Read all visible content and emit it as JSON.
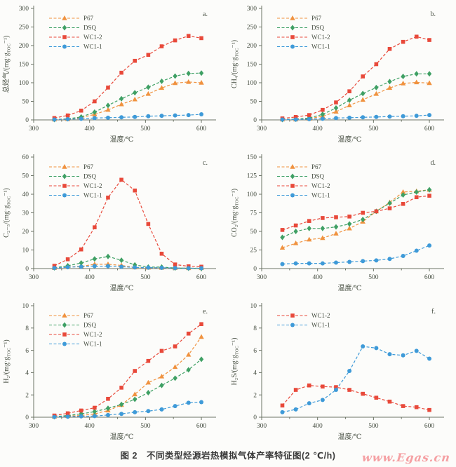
{
  "figure": {
    "caption": "图 2　不同类型烃源岩热模拟气体产率特征图(2 ℃/h)",
    "watermark": "www.Egas.cn"
  },
  "shared": {
    "xlabel": "温度/℃",
    "xlim": [
      300,
      615
    ],
    "xticks": [
      300,
      400,
      500,
      600
    ],
    "xticks_minor": [
      350,
      450,
      550
    ],
    "x_values": [
      337,
      361,
      385,
      409,
      433,
      457,
      481,
      505,
      529,
      553,
      577,
      600
    ],
    "colors": {
      "P67": "#f0923f",
      "DSQ": "#3fa064",
      "WC1-2": "#e8493a",
      "WC1-1": "#3e9ad8",
      "axis": "#6b7365",
      "text": "#474f42"
    },
    "markers": {
      "P67": "triangle",
      "DSQ": "diamond",
      "WC1-2": "square",
      "WC1-1": "circle"
    },
    "legend_position": "upper-left",
    "line_style": "dashed"
  },
  "chart_data": [
    {
      "type": "line",
      "panel": "a.",
      "ylabel": "总烃气/(mg·gTOC⁻¹)",
      "ylim": [
        0,
        300
      ],
      "yticks": [
        0,
        50,
        100,
        150,
        200,
        250,
        300
      ],
      "x": [
        337,
        361,
        385,
        409,
        433,
        457,
        481,
        505,
        529,
        553,
        577,
        600
      ],
      "series": [
        {
          "name": "P67",
          "values": [
            1,
            2,
            6,
            15,
            27,
            42,
            55,
            70,
            86,
            99,
            102,
            100
          ]
        },
        {
          "name": "DSQ",
          "values": [
            1,
            3,
            8,
            21,
            39,
            57,
            73,
            88,
            104,
            118,
            125,
            126
          ]
        },
        {
          "name": "WC1-2",
          "values": [
            5,
            12,
            25,
            50,
            87,
            127,
            159,
            175,
            198,
            214,
            226,
            220
          ]
        },
        {
          "name": "WC1-1",
          "values": [
            1,
            2,
            3,
            5,
            6,
            7,
            8,
            10,
            11,
            12,
            13,
            15
          ]
        }
      ]
    },
    {
      "type": "line",
      "panel": "b.",
      "ylabel": "CH₄/(mg·gTOC⁻¹)",
      "ylim": [
        0,
        300
      ],
      "yticks": [
        0,
        50,
        100,
        150,
        200,
        250,
        300
      ],
      "x": [
        337,
        361,
        385,
        409,
        433,
        457,
        481,
        505,
        529,
        553,
        577,
        600
      ],
      "series": [
        {
          "name": "P67",
          "values": [
            1,
            1,
            3,
            10,
            22,
            39,
            54,
            70,
            86,
            98,
            101,
            99
          ]
        },
        {
          "name": "DSQ",
          "values": [
            1,
            2,
            5,
            15,
            32,
            53,
            71,
            87,
            103,
            117,
            124,
            124
          ]
        },
        {
          "name": "WC1-2",
          "values": [
            4,
            8,
            13,
            27,
            47,
            77,
            117,
            150,
            191,
            210,
            224,
            215
          ]
        },
        {
          "name": "WC1-1",
          "values": [
            1,
            1,
            2,
            3,
            5,
            6,
            7,
            8,
            9,
            10,
            11,
            13
          ]
        }
      ]
    },
    {
      "type": "line",
      "panel": "c.",
      "ylabel": "C₂₋₅/(mg·gTOC⁻¹)",
      "ylim": [
        0,
        60
      ],
      "yticks": [
        0,
        10,
        20,
        30,
        40,
        50,
        60
      ],
      "x": [
        337,
        361,
        385,
        409,
        433,
        457,
        481,
        505,
        529,
        553,
        577,
        600
      ],
      "series": [
        {
          "name": "P67",
          "values": [
            0.3,
            0.8,
            1.2,
            2.3,
            2.3,
            1.7,
            0.6,
            0.5,
            0.4,
            0.3,
            0.2,
            0.2
          ]
        },
        {
          "name": "DSQ",
          "values": [
            0.4,
            1.5,
            3.0,
            5.2,
            6.5,
            4.5,
            2.0,
            0.8,
            0.8,
            0.3,
            0.2,
            0.1
          ]
        },
        {
          "name": "WC1-2",
          "values": [
            1.5,
            5.0,
            10.3,
            22.2,
            38.2,
            47.8,
            42.0,
            24.0,
            8.0,
            2.2,
            1.2,
            1.0
          ]
        },
        {
          "name": "WC1-1",
          "values": [
            0.3,
            0.7,
            1.0,
            1.3,
            1.3,
            1.0,
            0.6,
            0.5,
            0.4,
            0.3,
            0.2,
            0.2
          ]
        }
      ]
    },
    {
      "type": "line",
      "panel": "d.",
      "ylabel": "CO₂/(mg·gTOC⁻¹)",
      "ylim": [
        0,
        150
      ],
      "yticks": [
        0,
        25,
        50,
        75,
        100,
        125,
        150
      ],
      "x": [
        337,
        361,
        385,
        409,
        433,
        457,
        481,
        505,
        529,
        553,
        577,
        600
      ],
      "series": [
        {
          "name": "P67",
          "values": [
            28,
            34,
            39,
            41,
            47,
            54,
            63,
            77,
            89,
            103,
            104,
            106
          ]
        },
        {
          "name": "DSQ",
          "values": [
            42,
            50,
            54,
            54,
            56,
            60,
            66,
            77,
            88,
            99,
            103,
            106
          ]
        },
        {
          "name": "WC1-2",
          "values": [
            52,
            58,
            64,
            68,
            69,
            70,
            75,
            77,
            81,
            87,
            96,
            98
          ]
        },
        {
          "name": "WC1-1",
          "values": [
            6,
            7,
            7,
            7,
            8,
            9,
            10,
            11,
            13,
            17,
            24,
            31
          ]
        }
      ]
    },
    {
      "type": "line",
      "panel": "e.",
      "ylabel": "H₂/(mg·gTOC⁻¹)",
      "ylim": [
        0,
        10
      ],
      "yticks": [
        0,
        2,
        4,
        6,
        8,
        10
      ],
      "x": [
        337,
        361,
        385,
        409,
        433,
        457,
        481,
        505,
        529,
        553,
        577,
        600
      ],
      "series": [
        {
          "name": "P67",
          "values": [
            0.05,
            0.1,
            0.15,
            0.3,
            0.6,
            1.1,
            2.05,
            3.1,
            3.65,
            4.5,
            5.6,
            7.2
          ]
        },
        {
          "name": "DSQ",
          "values": [
            0.05,
            0.15,
            0.3,
            0.5,
            0.8,
            1.15,
            1.6,
            2.2,
            2.85,
            3.5,
            4.25,
            5.2
          ]
        },
        {
          "name": "WC1-2",
          "values": [
            0.15,
            0.35,
            0.6,
            0.85,
            1.65,
            2.65,
            4.15,
            5.05,
            5.95,
            6.35,
            7.5,
            8.35
          ]
        },
        {
          "name": "WC1-1",
          "values": [
            0.02,
            0.05,
            0.08,
            0.1,
            0.2,
            0.3,
            0.45,
            0.55,
            0.7,
            1.0,
            1.3,
            1.35
          ]
        }
      ]
    },
    {
      "type": "line",
      "panel": "f.",
      "ylabel": "H₂S/(mg·gTOC⁻¹)",
      "ylim": [
        0,
        10
      ],
      "yticks": [
        0,
        2,
        4,
        6,
        8,
        10
      ],
      "x": [
        337,
        361,
        385,
        409,
        433,
        457,
        481,
        505,
        529,
        553,
        577,
        600
      ],
      "series": [
        {
          "name": "WC1-2",
          "values": [
            1.05,
            2.45,
            2.85,
            2.75,
            2.7,
            2.45,
            2.1,
            1.75,
            1.4,
            1.0,
            0.9,
            0.65
          ]
        },
        {
          "name": "WC1-1",
          "values": [
            0.45,
            0.7,
            1.25,
            1.55,
            2.45,
            4.15,
            6.35,
            6.2,
            5.65,
            5.55,
            5.95,
            5.25
          ]
        }
      ]
    }
  ]
}
